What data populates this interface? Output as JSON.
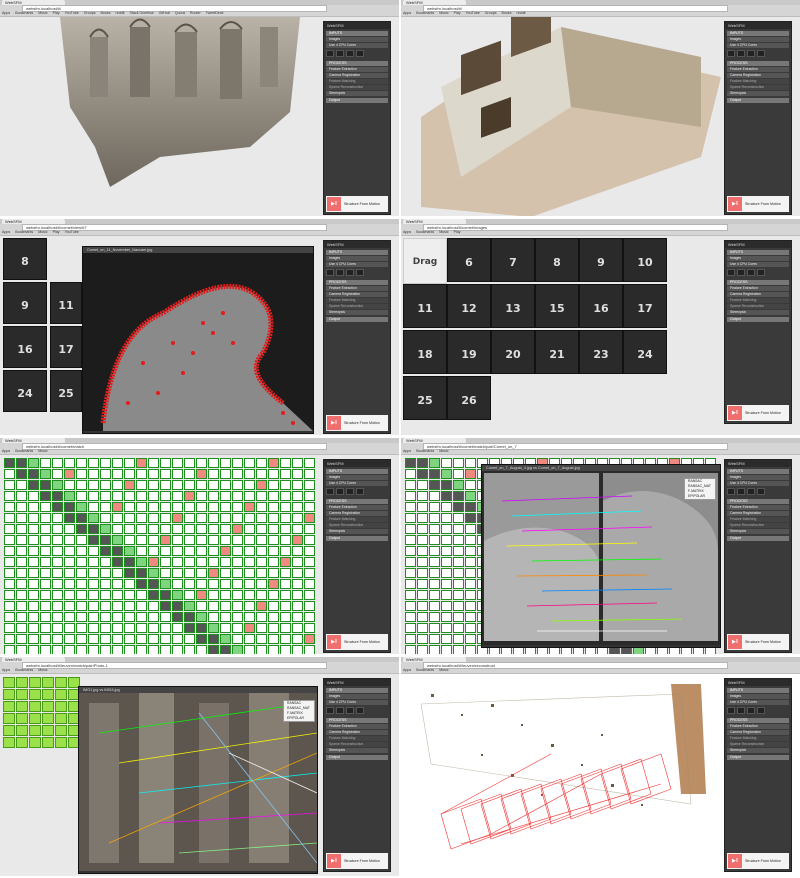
{
  "browser": {
    "tab_title": "WebSFM",
    "bookmarks": [
      "Apps",
      "Bookmarks",
      "Music",
      "Play",
      "YouTube",
      "Groups",
      "Books",
      "reddit",
      "Stack Overflow",
      "GitHub",
      "Quora",
      "Router",
      "TweetDeck",
      "Local",
      "Social",
      "Shopping",
      "Resource",
      "Utility",
      "Archive (unread)",
      "Other bookmarks"
    ],
    "urls": [
      "websfm.localhost/#/",
      "websfm.localhost/#/",
      "websfm.localhost/#/comet/view/67",
      "websfm.localhost/#/comet/images",
      "websfm.localhost/#/comet/match",
      "websfm.localhost/#/comet/match/pair/Comet_on_7",
      "websfm.localhost/#/leuven/match/pair/Photo-1",
      "websfm.localhost/#/leuven/reconstruct"
    ]
  },
  "panel": {
    "title": "WebSFM",
    "inputs_header": "INPUTS",
    "images_label": "Images",
    "cores_label": "Use 4 CPU Cores",
    "process_header": "PROCESS",
    "feature_extraction": "Feature Extraction",
    "camera_registration": "Camera Registration",
    "feature_matching": "Feature Matching",
    "sparse_reconstruction": "Sparse Reconstruction",
    "stereopsis": "Stereopsis",
    "output": "Output",
    "play_icon": "play-pause-icon",
    "footer_label": "Structure From Motion"
  },
  "screens": {
    "feature_view_title": "Comet_on_11_November_Navcam.jpg",
    "drag_label": "Drag",
    "thumb_numbers": [
      "8",
      "9",
      "11",
      "16",
      "17",
      "24",
      "25"
    ],
    "image_numbers": [
      "6",
      "7",
      "8",
      "9",
      "10",
      "11",
      "12",
      "13",
      "15",
      "16",
      "17",
      "18",
      "19",
      "20",
      "21",
      "23",
      "24",
      "25",
      "26"
    ],
    "match_pair_title": "Comet_on_7_August_4.jpg vs Comet_on_7_August.jpg",
    "facade_pair_title": "IMG1.jpg vs IMG4.jpg",
    "context_menu": [
      "RANSAC",
      "RANSAC_MAT",
      "F-MATRIX",
      "EPIPOLAR"
    ]
  }
}
